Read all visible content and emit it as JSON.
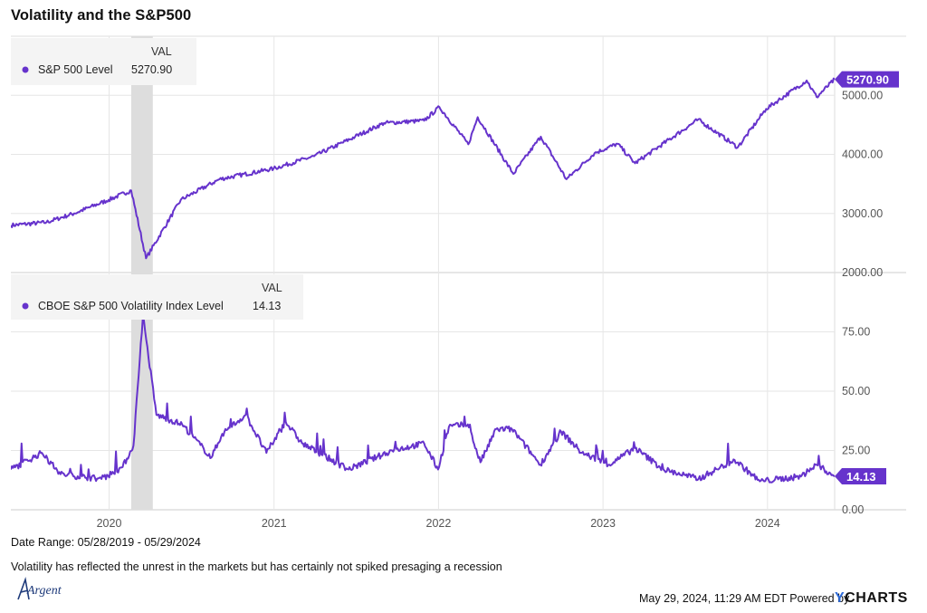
{
  "title": "Volatility and the S&P500",
  "legend_header": "VAL",
  "footer": {
    "date_range": "Date Range: 05/28/2019 - 05/29/2024",
    "note": "Volatility has reflected the unrest in the markets but has certainly not spiked presaging a recession",
    "timestamp": "May 29, 2024, 11:29 AM EDT Powered by",
    "brand_y": "Y",
    "brand_rest": "CHARTS",
    "logo_text": "Argent"
  },
  "colors": {
    "series": "#6633cc",
    "recession_band": "#dddddd",
    "grid": "#e6e6e6"
  },
  "chart_data": [
    {
      "type": "line",
      "series": [
        {
          "name": "S&P 500 Level",
          "last_value": "5270.90"
        }
      ],
      "y_ticks": [
        "2000.00",
        "3000.00",
        "4000.00",
        "5000.00"
      ],
      "ylim": [
        2000,
        6000
      ],
      "shaded_period": [
        "2020-02-19",
        "2020-04-07"
      ],
      "x": [
        "2019-05-28",
        "2019-08-15",
        "2019-10-15",
        "2019-12-31",
        "2020-02-19",
        "2020-03-23",
        "2020-06-08",
        "2020-09-02",
        "2020-12-31",
        "2021-03-31",
        "2021-06-30",
        "2021-09-02",
        "2021-11-30",
        "2022-01-03",
        "2022-03-08",
        "2022-03-29",
        "2022-06-16",
        "2022-08-16",
        "2022-10-12",
        "2022-12-13",
        "2023-02-02",
        "2023-03-13",
        "2023-07-31",
        "2023-10-27",
        "2023-12-29",
        "2024-03-28",
        "2024-04-19",
        "2024-05-29"
      ],
      "y": [
        2800,
        2850,
        3000,
        3230,
        3390,
        2240,
        3230,
        3580,
        3760,
        3970,
        4300,
        4530,
        4570,
        4800,
        4170,
        4630,
        3670,
        4300,
        3580,
        4020,
        4180,
        3850,
        4590,
        4120,
        4770,
        5250,
        4970,
        5270.9
      ]
    },
    {
      "type": "line",
      "series": [
        {
          "name": "CBOE S&P 500 Volatility Index Level",
          "last_value": "14.13"
        }
      ],
      "y_ticks": [
        "0.00",
        "25.00",
        "50.00",
        "75.00"
      ],
      "ylim": [
        0,
        100
      ],
      "x_ticks": [
        "2020",
        "2021",
        "2022",
        "2023",
        "2024"
      ],
      "x": [
        "2019-05-28",
        "2019-08-05",
        "2019-09-15",
        "2019-12-15",
        "2020-01-31",
        "2020-02-24",
        "2020-03-16",
        "2020-04-15",
        "2020-06-11",
        "2020-08-15",
        "2020-09-08",
        "2020-10-30",
        "2020-12-15",
        "2021-01-27",
        "2021-03-04",
        "2021-06-15",
        "2021-09-20",
        "2021-11-30",
        "2021-12-31",
        "2022-01-24",
        "2022-03-07",
        "2022-04-04",
        "2022-05-09",
        "2022-06-13",
        "2022-08-15",
        "2022-09-30",
        "2022-11-15",
        "2023-01-15",
        "2023-03-13",
        "2023-05-15",
        "2023-08-01",
        "2023-10-20",
        "2023-12-15",
        "2024-03-15",
        "2024-04-19",
        "2024-05-29"
      ],
      "y": [
        17,
        24,
        15,
        13,
        18,
        27,
        82,
        40,
        36,
        22,
        32,
        40,
        24,
        37,
        28,
        17,
        25,
        28,
        17,
        35,
        36,
        20,
        34,
        34,
        19,
        33,
        24,
        19,
        26,
        17,
        13,
        21,
        12,
        14,
        19,
        14.13
      ]
    }
  ]
}
